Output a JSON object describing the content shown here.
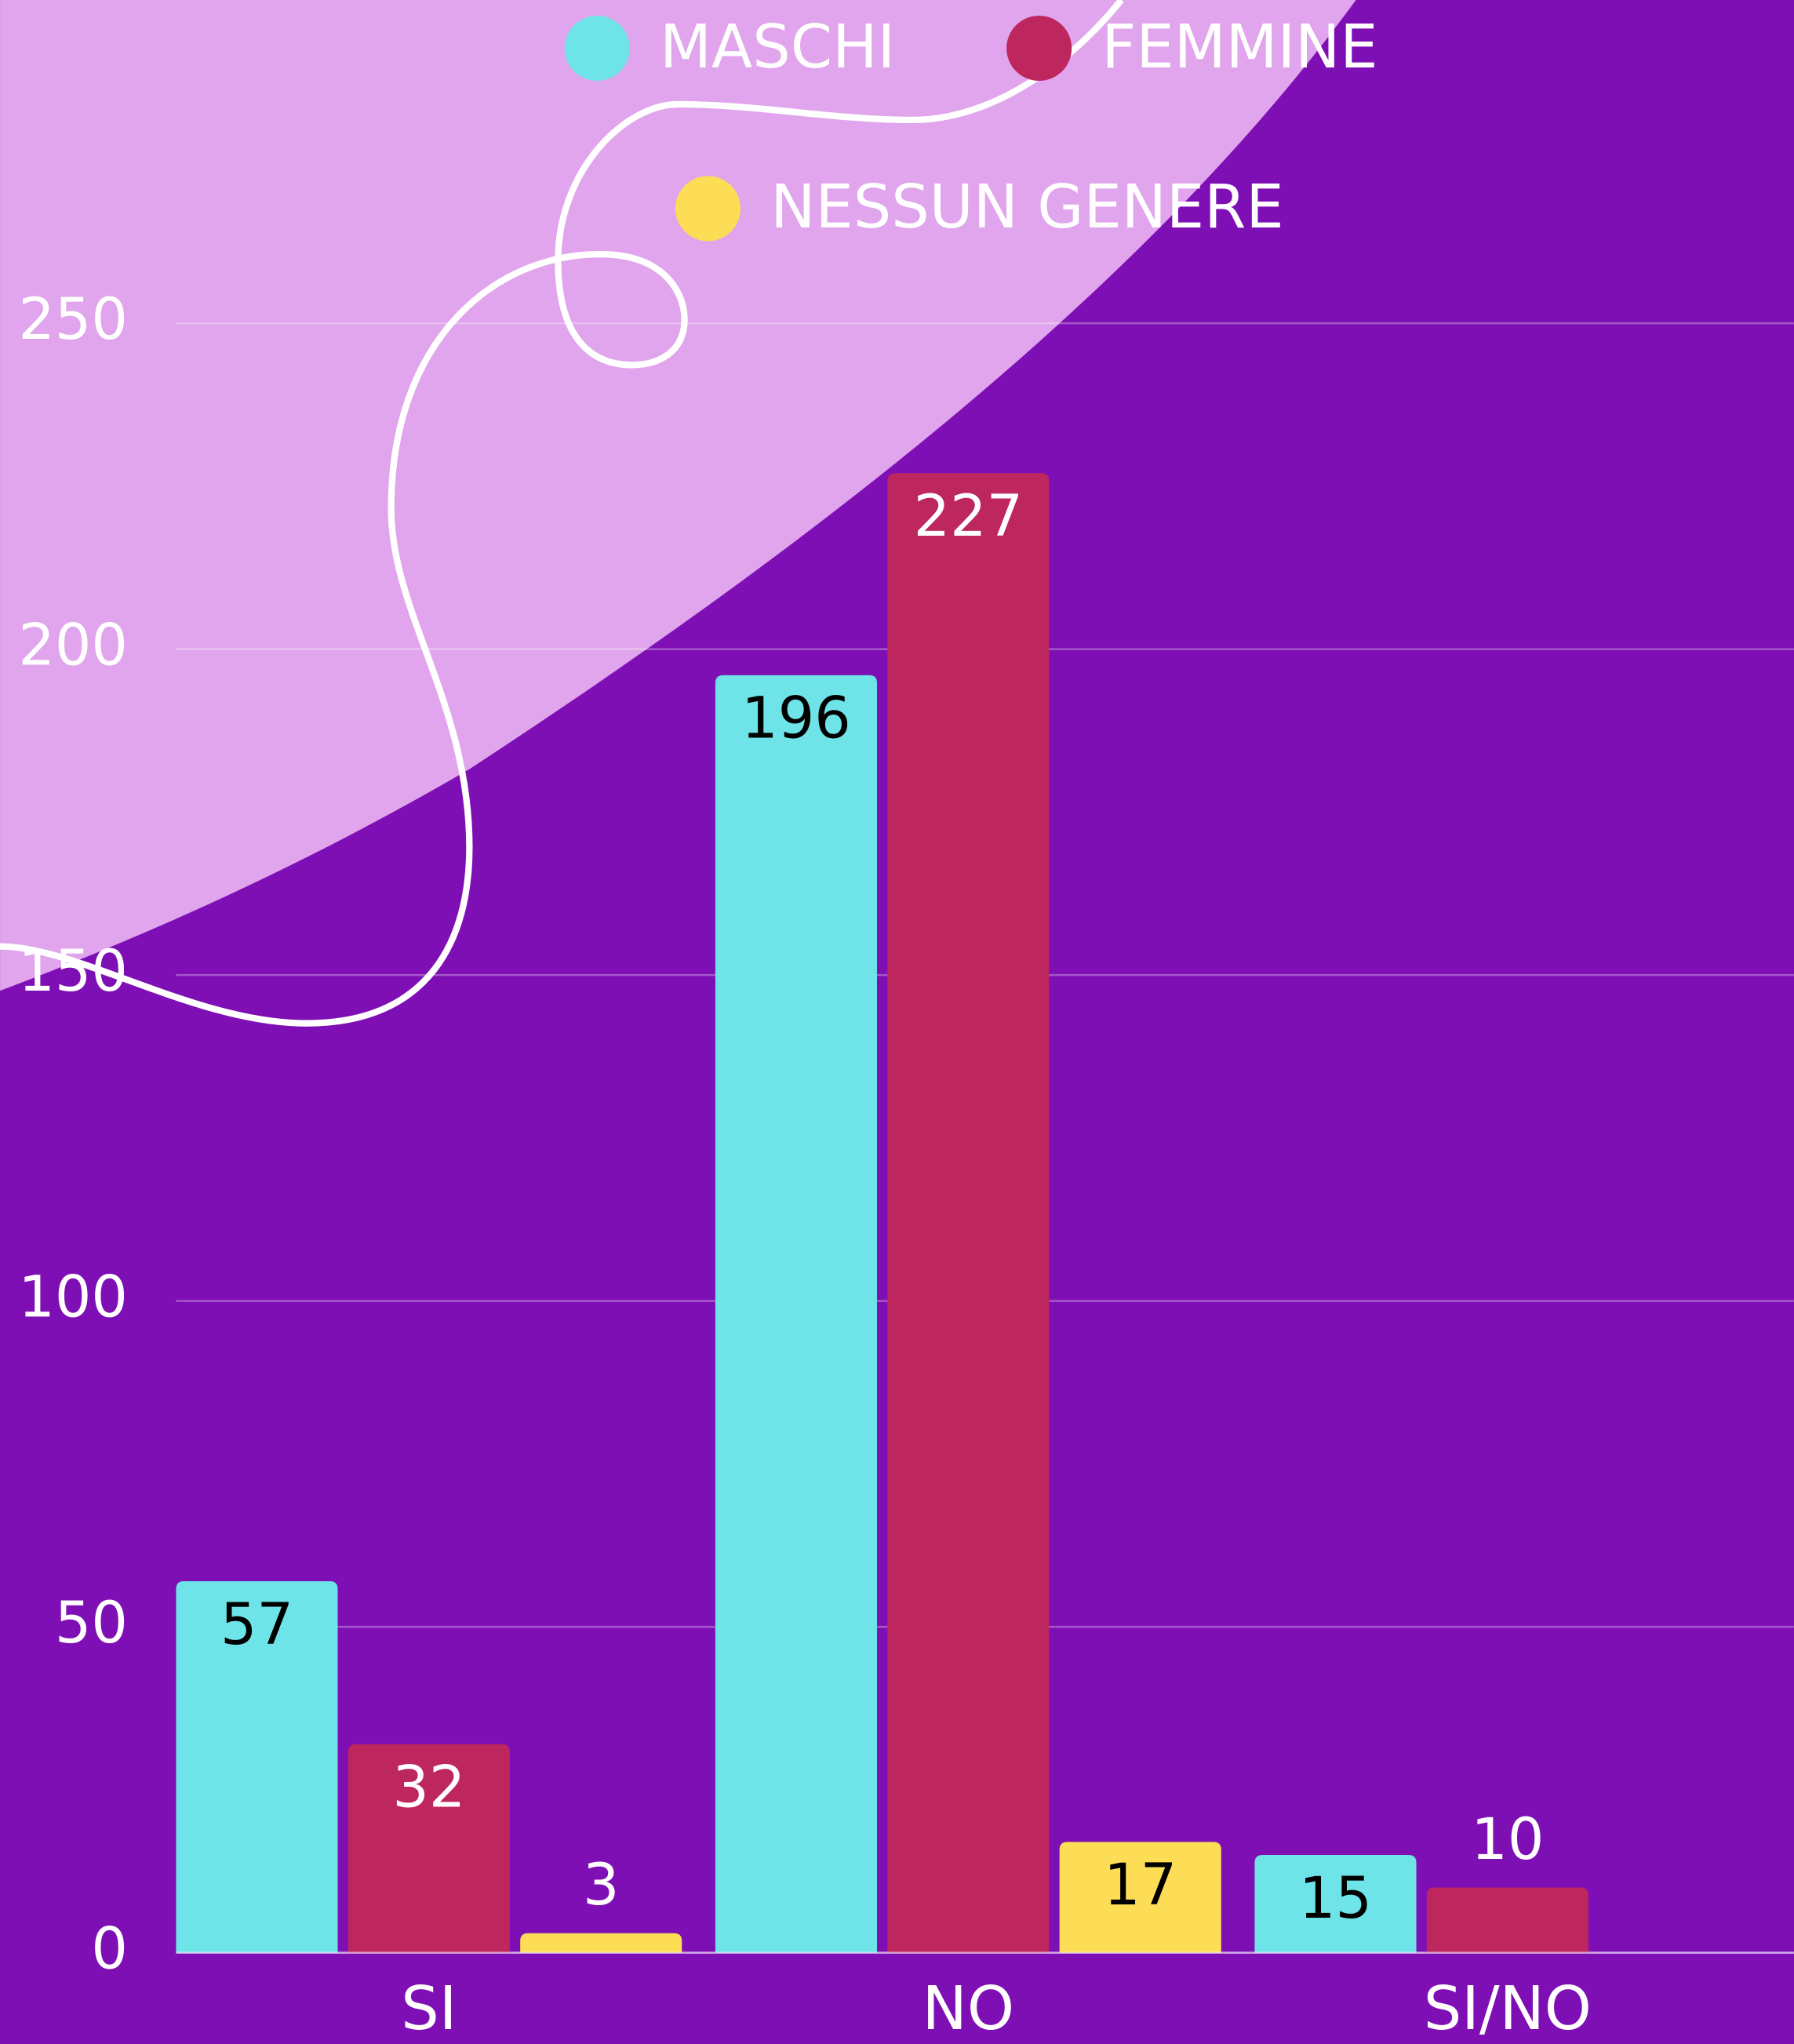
{
  "chart_data": {
    "type": "bar",
    "categories": [
      "SI",
      "NO",
      "SI/NO"
    ],
    "series": [
      {
        "name": "MASCHI",
        "color": "#6ee4e8",
        "values": [
          57,
          196,
          15
        ]
      },
      {
        "name": "FEMMINE",
        "color": "#be265e",
        "values": [
          32,
          227,
          10
        ]
      },
      {
        "name": "NESSUN GENERE",
        "color": "#fddc56",
        "values": [
          3,
          17,
          null
        ]
      }
    ],
    "ylim": [
      0,
      250
    ],
    "yticks": [
      0,
      50,
      100,
      150,
      200,
      250
    ],
    "grid": true,
    "legend": "top"
  }
}
